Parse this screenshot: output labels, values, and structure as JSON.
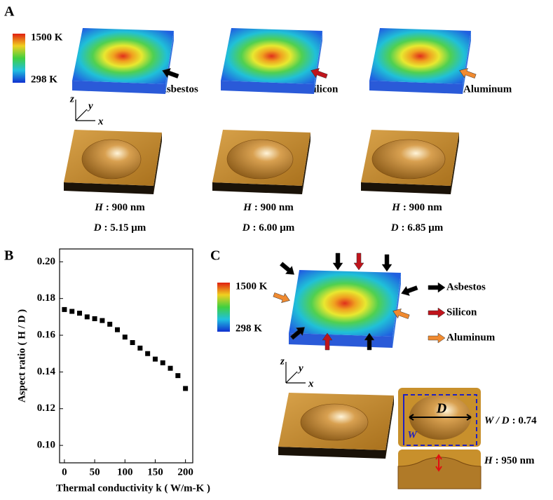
{
  "panel_a": {
    "label": "A",
    "colorbar": {
      "max": "1500 K",
      "min": "298 K"
    },
    "axes": {
      "z": "z",
      "y": "y",
      "x": "x"
    },
    "samples": [
      {
        "material": "Asbestos",
        "arrow_color": "#000000",
        "height": {
          "symbol": "H",
          "text": ": 900 nm"
        },
        "diameter": {
          "symbol": "D",
          "text": ": 5.15 μm"
        }
      },
      {
        "material": "Silicon",
        "arrow_color": "#c0141c",
        "height": {
          "symbol": "H",
          "text": ": 900 nm"
        },
        "diameter": {
          "symbol": "D",
          "text": ": 6.00 μm"
        }
      },
      {
        "material": "Aluminum",
        "arrow_color": "#f08a30",
        "height": {
          "symbol": "H",
          "text": ": 900 nm"
        },
        "diameter": {
          "symbol": "D",
          "text": ": 6.85 μm"
        }
      }
    ]
  },
  "chart_data": {
    "type": "scatter",
    "panel_label": "B",
    "x_label": "Thermal conductivity k ( W/m-K )",
    "y_label": "Aspect ratio ( H / D )",
    "x": [
      0,
      12.5,
      25,
      37.5,
      50,
      62.5,
      75,
      87.5,
      100,
      112.5,
      125,
      137.5,
      150,
      162.5,
      175,
      187.5,
      200
    ],
    "values": [
      0.174,
      0.173,
      0.172,
      0.17,
      0.169,
      0.168,
      0.166,
      0.163,
      0.159,
      0.156,
      0.153,
      0.15,
      0.147,
      0.145,
      0.142,
      0.138,
      0.131
    ],
    "color": "#000000",
    "xlim": [
      -8,
      212
    ],
    "ylim": [
      0.0905,
      0.207
    ],
    "xticks": [
      0,
      50,
      100,
      150,
      200
    ],
    "yticks": [
      {
        "value": 0.1,
        "label": "0.10"
      },
      0.12,
      0.14,
      0.16,
      0.18,
      {
        "value": 0.2,
        "label": "0.20"
      }
    ]
  },
  "panel_c": {
    "label": "C",
    "colorbar": {
      "max": "1500 K",
      "min": "298 K"
    },
    "axes": {
      "z": "z",
      "y": "y",
      "x": "x"
    },
    "legend": [
      {
        "name": "Asbestos",
        "color": "#000000"
      },
      {
        "name": "Silicon",
        "color": "#c0141c"
      },
      {
        "name": "Aluminum",
        "color": "#f08a30"
      }
    ],
    "inset": {
      "diameter_symbol": "D",
      "width_symbol": "W",
      "ratio": {
        "symbol": "W / D",
        "text": ": 0.74"
      },
      "height": {
        "symbol": "H",
        "text": ": 950 nm"
      }
    }
  }
}
